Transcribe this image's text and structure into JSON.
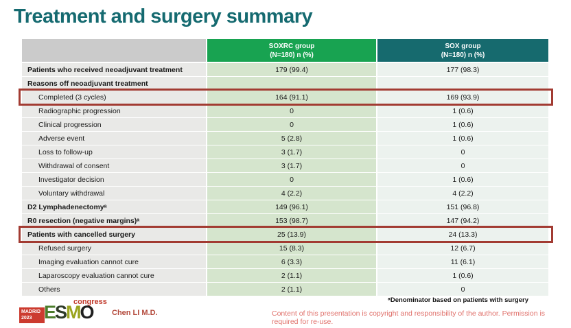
{
  "slide": {
    "title": "Treatment and surgery summary"
  },
  "table": {
    "header": {
      "soxrc_line1": "SOXRC group",
      "soxrc_line2": "(N=180)  n (%)",
      "sox_line1": "SOX group",
      "sox_line2": "(N=180)  n (%)"
    },
    "rows": [
      {
        "label": "Patients who received neoadjuvant treatment",
        "soxrc": "179 (99.4)",
        "sox": "177 (98.3)"
      },
      {
        "label": "Reasons off neoadjuvant treatment",
        "soxrc": "",
        "sox": ""
      },
      {
        "label": "Completed (3 cycles)",
        "soxrc": "164 (91.1)",
        "sox": "169 (93.9)"
      },
      {
        "label": "Radiographic progression",
        "soxrc": "0",
        "sox": "1 (0.6)"
      },
      {
        "label": "Clinical progression",
        "soxrc": "0",
        "sox": "1 (0.6)"
      },
      {
        "label": "Adverse event",
        "soxrc": "5 (2.8)",
        "sox": "1 (0.6)"
      },
      {
        "label": "Loss to follow-up",
        "soxrc": "3 (1.7)",
        "sox": "0"
      },
      {
        "label": "Withdrawal of consent",
        "soxrc": "3 (1.7)",
        "sox": "0"
      },
      {
        "label": "Investigator decision",
        "soxrc": "0",
        "sox": "1 (0.6)"
      },
      {
        "label": "Voluntary withdrawal",
        "soxrc": "4 (2.2)",
        "sox": "4 (2.2)"
      },
      {
        "label": "D2 Lymphadenectomyᵃ",
        "soxrc": "149 (96.1)",
        "sox": "151 (96.8)"
      },
      {
        "label": "R0 resection (negative margins)ᵃ",
        "soxrc": "153 (98.7)",
        "sox": "147 (94.2)"
      },
      {
        "label": "Patients with cancelled surgery",
        "soxrc": "25 (13.9)",
        "sox": "24 (13.3)"
      },
      {
        "label": "Refused surgery",
        "soxrc": "15 (8.3)",
        "sox": "12 (6.7)"
      },
      {
        "label": "Imaging evaluation cannot cure",
        "soxrc": "6 (3.3)",
        "sox": "11 (6.1)"
      },
      {
        "label": "Laparoscopy evaluation cannot cure",
        "soxrc": "2 (1.1)",
        "sox": "1 (0.6)"
      },
      {
        "label": "Others",
        "soxrc": "2 (1.1)",
        "sox": "0"
      }
    ]
  },
  "footer": {
    "footnote": "ᵃDenominator based on patients with surgery",
    "copyright": "Content of this presentation is copyright and responsibility of the author. Permission is required for re-use.",
    "author": "Chen LI M.D.",
    "logo": {
      "madrid": "MADRID",
      "year": "2023",
      "esmo_e": "E",
      "esmo_s": "S",
      "esmo_m": "M",
      "esmo_o": "O",
      "congress": "congress"
    }
  },
  "colors": {
    "title": "#156a70",
    "header_soxrc": "#18a351",
    "header_sox": "#166a6e",
    "label_cell": "#e9e9e7",
    "soxrc_cell": "#d5e5cd",
    "sox_cell": "#ecf2ee",
    "highlight_frame": "#a23b32",
    "copyright_text": "#e0716b"
  }
}
